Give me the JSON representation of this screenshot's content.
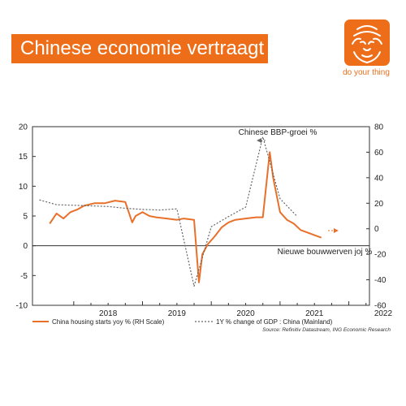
{
  "header": {
    "title": "Chinese economie vertraagt",
    "brand_tagline": "do your thing",
    "brand_icon": "lion-logo-icon"
  },
  "colors": {
    "accent": "#ee6d19",
    "housing_line": "#e8702a",
    "gdp_line": "#666666",
    "axis": "#333333"
  },
  "chart_data": {
    "type": "line",
    "x_ticks": [
      "2018",
      "2019",
      "2020",
      "2021",
      "2022"
    ],
    "x_range": [
      2017.4,
      2022.3
    ],
    "y_left": {
      "range": [
        -10,
        20
      ],
      "ticks": [
        -10,
        -5,
        0,
        5,
        10,
        15,
        20
      ]
    },
    "y_right": {
      "range": [
        -60,
        80
      ],
      "ticks": [
        -60,
        -40,
        -20,
        0,
        20,
        40,
        60,
        80
      ]
    },
    "zero_line": true,
    "grid": false,
    "legend_position": "bottom",
    "annotations": {
      "gdp": "Chinese BBP-groei %",
      "housing": "Nieuwe bouwwerven joj %"
    },
    "source": "Source: Refinitiv Datastream, ING Economic Research",
    "series": [
      {
        "name": "China housing starts yoy % (RH Scale)",
        "axis": "right",
        "style": "solid",
        "x": [
          2017.65,
          2017.75,
          2017.85,
          2017.95,
          2018.05,
          2018.15,
          2018.3,
          2018.45,
          2018.6,
          2018.75,
          2018.85,
          2018.9,
          2019.0,
          2019.1,
          2019.2,
          2019.35,
          2019.5,
          2019.6,
          2019.75,
          2019.82,
          2019.87,
          2019.95,
          2020.05,
          2020.15,
          2020.25,
          2020.35,
          2020.5,
          2020.65,
          2020.75,
          2020.85,
          2020.9,
          2021.0,
          2021.1,
          2021.2,
          2021.3,
          2021.4,
          2021.5,
          2021.6
        ],
        "values": [
          4,
          12,
          8,
          13,
          15,
          18,
          20,
          20,
          22,
          21,
          5,
          10,
          13,
          10,
          9,
          8,
          7,
          8,
          7,
          -42,
          -20,
          -12,
          -6,
          1,
          5,
          7,
          8,
          9,
          9,
          60,
          40,
          13,
          7,
          4,
          -1,
          -3,
          -5,
          -7
        ]
      },
      {
        "name": "1Y % change of GDP : China (Mainland)",
        "axis": "left",
        "style": "dotted",
        "x": [
          2017.5,
          2017.75,
          2018.0,
          2018.25,
          2018.5,
          2018.75,
          2019.0,
          2019.25,
          2019.5,
          2019.75,
          2020.0,
          2020.25,
          2020.5,
          2020.75,
          2021.0,
          2021.25
        ],
        "values": [
          7.7,
          6.9,
          6.8,
          6.7,
          6.6,
          6.3,
          6.1,
          6.0,
          6.2,
          -6.8,
          3.2,
          4.9,
          6.5,
          18.3,
          7.9,
          4.9
        ]
      }
    ]
  }
}
